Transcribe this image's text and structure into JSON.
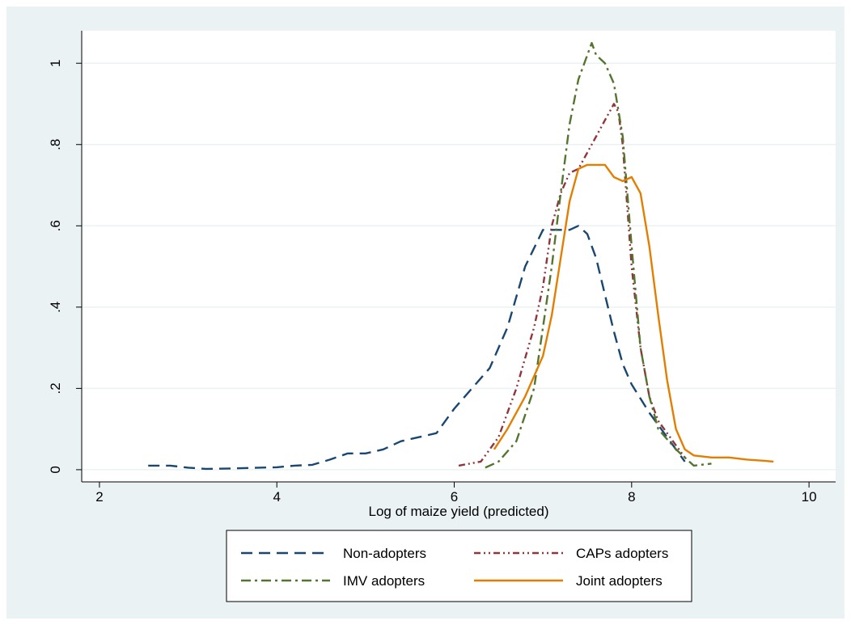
{
  "chart_data": {
    "type": "line",
    "title": "",
    "xlabel": "Log of maize yield (predicted)",
    "ylabel": "",
    "xlim": [
      1.8,
      10.3
    ],
    "ylim": [
      -0.03,
      1.08
    ],
    "xticks": [
      2,
      4,
      6,
      8,
      10
    ],
    "xtick_labels": [
      "2",
      "4",
      "6",
      "8",
      "10"
    ],
    "yticks": [
      0,
      0.2,
      0.4,
      0.6,
      0.8,
      1
    ],
    "ytick_labels": [
      "0",
      ".2",
      ".4",
      ".6",
      ".8",
      "1"
    ],
    "grid": "horizontal",
    "legend_position": "bottom",
    "series": [
      {
        "name": "Non-adopters",
        "color": "#1a476f",
        "style": "dash",
        "x": [
          2.55,
          2.8,
          3.0,
          3.2,
          3.5,
          3.8,
          4.0,
          4.2,
          4.4,
          4.6,
          4.8,
          5.0,
          5.2,
          5.4,
          5.6,
          5.8,
          6.0,
          6.2,
          6.4,
          6.6,
          6.8,
          7.0,
          7.1,
          7.2,
          7.3,
          7.4,
          7.5,
          7.6,
          7.7,
          7.8,
          7.9,
          8.0,
          8.2,
          8.4,
          8.6
        ],
        "y": [
          0.01,
          0.01,
          0.005,
          0.002,
          0.003,
          0.005,
          0.006,
          0.01,
          0.012,
          0.025,
          0.04,
          0.04,
          0.05,
          0.07,
          0.08,
          0.09,
          0.15,
          0.2,
          0.25,
          0.35,
          0.5,
          0.59,
          0.59,
          0.59,
          0.59,
          0.6,
          0.58,
          0.52,
          0.43,
          0.34,
          0.26,
          0.21,
          0.14,
          0.08,
          0.02
        ]
      },
      {
        "name": "CAPs adopters",
        "color": "#90353b",
        "style": "dash-dot-dot",
        "x": [
          6.05,
          6.3,
          6.5,
          6.7,
          6.9,
          7.0,
          7.1,
          7.2,
          7.3,
          7.4,
          7.5,
          7.6,
          7.7,
          7.8,
          7.85,
          7.9,
          8.0,
          8.1,
          8.2,
          8.3,
          8.4,
          8.5,
          8.6
        ],
        "y": [
          0.01,
          0.02,
          0.08,
          0.2,
          0.35,
          0.45,
          0.6,
          0.68,
          0.73,
          0.74,
          0.78,
          0.82,
          0.86,
          0.9,
          0.88,
          0.8,
          0.5,
          0.3,
          0.18,
          0.12,
          0.09,
          0.06,
          0.03
        ]
      },
      {
        "name": "IMV adopters",
        "color": "#55752f",
        "style": "dash-dot",
        "x": [
          6.35,
          6.5,
          6.7,
          6.9,
          7.0,
          7.1,
          7.2,
          7.3,
          7.4,
          7.5,
          7.55,
          7.6,
          7.7,
          7.8,
          7.9,
          8.0,
          8.1,
          8.2,
          8.3,
          8.5,
          8.7,
          8.9
        ],
        "y": [
          0.005,
          0.02,
          0.07,
          0.2,
          0.35,
          0.5,
          0.68,
          0.85,
          0.96,
          1.02,
          1.05,
          1.02,
          1.0,
          0.95,
          0.82,
          0.55,
          0.3,
          0.18,
          0.1,
          0.05,
          0.01,
          0.015
        ]
      },
      {
        "name": "Joint adopters",
        "color": "#e37e00",
        "style": "solid",
        "x": [
          6.45,
          6.6,
          6.8,
          7.0,
          7.1,
          7.2,
          7.3,
          7.4,
          7.5,
          7.6,
          7.7,
          7.8,
          7.9,
          8.0,
          8.1,
          8.2,
          8.3,
          8.4,
          8.5,
          8.6,
          8.7,
          8.9,
          9.1,
          9.3,
          9.5,
          9.6
        ],
        "y": [
          0.05,
          0.1,
          0.18,
          0.28,
          0.38,
          0.52,
          0.66,
          0.74,
          0.75,
          0.75,
          0.75,
          0.72,
          0.71,
          0.72,
          0.68,
          0.55,
          0.38,
          0.22,
          0.1,
          0.05,
          0.035,
          0.03,
          0.03,
          0.025,
          0.022,
          0.02
        ]
      }
    ]
  }
}
